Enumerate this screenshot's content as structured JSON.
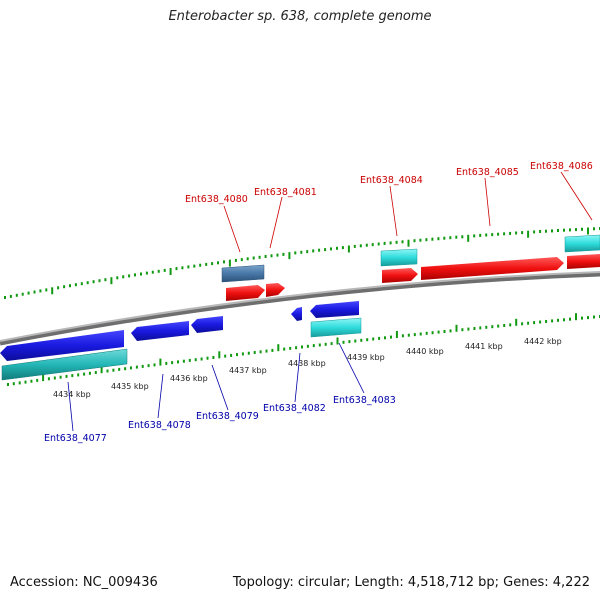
{
  "title": "Enterobacter sp. 638, complete genome",
  "footer": {
    "accession": "Accession: NC_009436",
    "summary": "Topology: circular; Length: 4,518,712 bp; Genes: 4,222"
  },
  "colors": {
    "forward_gene": "#ff1a1a",
    "reverse_gene": "#1a1acc",
    "forward_feature": "#33e5e5",
    "reverse_feature": "#29c4c4",
    "other_feature": "#4c7fae",
    "forward_label": "#cc0000",
    "reverse_label": "#0000aa",
    "tick": "#119911",
    "backbone": "#8c8c8c"
  },
  "scale_labels": [
    "4434 kbp",
    "4435 kbp",
    "4436 kbp",
    "4437 kbp",
    "4438 kbp",
    "4439 kbp",
    "4440 kbp",
    "4441 kbp",
    "4442 kbp"
  ],
  "forward_labels": [
    "Ent638_4080",
    "Ent638_4081",
    "Ent638_4084",
    "Ent638_4085",
    "Ent638_4086"
  ],
  "reverse_labels": [
    "Ent638_4077",
    "Ent638_4078",
    "Ent638_4079",
    "Ent638_4082",
    "Ent638_4083"
  ]
}
